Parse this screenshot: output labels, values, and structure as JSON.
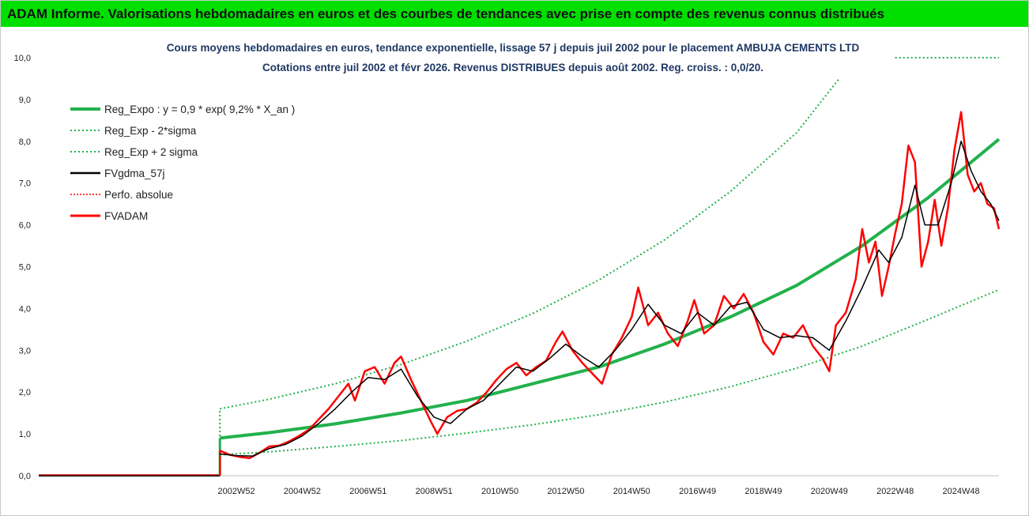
{
  "banner": {
    "title": "ADAM Informe. Valorisations hebdomadaires en euros et des courbes de tendances avec prise en compte des revenus connus distribués"
  },
  "chart_data": {
    "type": "line",
    "title_line1": "Cours moyens hebdomadaires en euros, tendance exponentielle, lissage 57 j depuis juil 2002 pour le placement AMBUJA CEMENTS LTD",
    "title_line2": "Cotations entre juil 2002 et févr 2026.  Revenus DISTRIBUES depuis août 2002. Reg. croiss. : 0,0/20.",
    "ylim": [
      0,
      10
    ],
    "yticks": [
      "0,0",
      "1,0",
      "2,0",
      "3,0",
      "4,0",
      "5,0",
      "6,0",
      "7,0",
      "8,0",
      "9,0",
      "10,0"
    ],
    "xlim": [
      1997.0,
      2026.15
    ],
    "xticks": [
      {
        "label": "2002W52",
        "x": 2003.0
      },
      {
        "label": "2004W52",
        "x": 2005.0
      },
      {
        "label": "2006W51",
        "x": 2007.0
      },
      {
        "label": "2008W51",
        "x": 2009.0
      },
      {
        "label": "2010W50",
        "x": 2011.0
      },
      {
        "label": "2012W50",
        "x": 2013.0
      },
      {
        "label": "2014W50",
        "x": 2015.0
      },
      {
        "label": "2016W49",
        "x": 2017.0
      },
      {
        "label": "2018W49",
        "x": 2019.0
      },
      {
        "label": "2020W49",
        "x": 2021.0
      },
      {
        "label": "2022W48",
        "x": 2023.0
      },
      {
        "label": "2024W48",
        "x": 2025.0
      }
    ],
    "grid": false,
    "legend_position": "top-left",
    "colors": {
      "reg_expo": "#22b14c",
      "sigma": "#22b14c",
      "fvgdma": "#000000",
      "perfo": "#ff0000",
      "fvadam": "#ff0000",
      "banner": "#00e000",
      "title": "#1f3864"
    },
    "start_x": 2002.5,
    "legend": [
      {
        "key": "reg_expo",
        "name": "Reg_Expo : y = 0,9 * exp( 9,2% *  X_an )"
      },
      {
        "key": "minus",
        "name": "Reg_Exp - 2*sigma"
      },
      {
        "key": "plus",
        "name": "Reg_Exp + 2 sigma"
      },
      {
        "key": "fvgdma",
        "name": "FVgdma_57j"
      },
      {
        "key": "perfo",
        "name": "Perfo. absolue"
      },
      {
        "key": "fvadam",
        "name": "FVADAM"
      }
    ],
    "series": [
      {
        "key": "reg_expo",
        "points": [
          [
            2002.5,
            0.9
          ],
          [
            2004,
            1.03
          ],
          [
            2006,
            1.24
          ],
          [
            2008,
            1.5
          ],
          [
            2010,
            1.8
          ],
          [
            2012,
            2.2
          ],
          [
            2014,
            2.6
          ],
          [
            2016,
            3.15
          ],
          [
            2018,
            3.8
          ],
          [
            2020,
            4.55
          ],
          [
            2022,
            5.5
          ],
          [
            2024,
            6.65
          ],
          [
            2026.15,
            8.05
          ]
        ]
      },
      {
        "key": "minus",
        "points": [
          [
            2002.5,
            0.5
          ],
          [
            2004,
            0.57
          ],
          [
            2006,
            0.7
          ],
          [
            2008,
            0.84
          ],
          [
            2010,
            1.02
          ],
          [
            2012,
            1.22
          ],
          [
            2014,
            1.46
          ],
          [
            2016,
            1.76
          ],
          [
            2018,
            2.13
          ],
          [
            2020,
            2.57
          ],
          [
            2022,
            3.1
          ],
          [
            2024,
            3.74
          ],
          [
            2026.15,
            4.45
          ]
        ]
      },
      {
        "key": "plus",
        "points": [
          [
            2002.5,
            1.6
          ],
          [
            2004,
            1.83
          ],
          [
            2006,
            2.2
          ],
          [
            2008,
            2.66
          ],
          [
            2010,
            3.22
          ],
          [
            2012,
            3.88
          ],
          [
            2014,
            4.68
          ],
          [
            2016,
            5.64
          ],
          [
            2018,
            6.8
          ],
          [
            2020,
            8.2
          ],
          [
            2021.3,
            9.5
          ]
        ]
      },
      {
        "key": "plus_flat",
        "points": [
          [
            2023.0,
            10.0
          ],
          [
            2026.15,
            10.0
          ]
        ]
      },
      {
        "key": "fvgdma",
        "points": [
          [
            2002.5,
            0.52
          ],
          [
            2003.0,
            0.48
          ],
          [
            2003.5,
            0.47
          ],
          [
            2004.0,
            0.65
          ],
          [
            2004.5,
            0.75
          ],
          [
            2005.0,
            0.95
          ],
          [
            2005.5,
            1.25
          ],
          [
            2006.0,
            1.6
          ],
          [
            2006.5,
            2.0
          ],
          [
            2007.0,
            2.35
          ],
          [
            2007.5,
            2.3
          ],
          [
            2008.0,
            2.55
          ],
          [
            2008.5,
            1.9
          ],
          [
            2009.0,
            1.4
          ],
          [
            2009.5,
            1.25
          ],
          [
            2010.0,
            1.6
          ],
          [
            2010.5,
            1.8
          ],
          [
            2011.0,
            2.2
          ],
          [
            2011.5,
            2.6
          ],
          [
            2012.0,
            2.5
          ],
          [
            2012.5,
            2.8
          ],
          [
            2013.0,
            3.15
          ],
          [
            2013.5,
            2.85
          ],
          [
            2014.0,
            2.6
          ],
          [
            2014.5,
            3.0
          ],
          [
            2015.0,
            3.5
          ],
          [
            2015.5,
            4.1
          ],
          [
            2016.0,
            3.6
          ],
          [
            2016.5,
            3.4
          ],
          [
            2017.0,
            3.9
          ],
          [
            2017.5,
            3.6
          ],
          [
            2018.0,
            4.05
          ],
          [
            2018.5,
            4.15
          ],
          [
            2019.0,
            3.5
          ],
          [
            2019.5,
            3.3
          ],
          [
            2020.0,
            3.35
          ],
          [
            2020.5,
            3.3
          ],
          [
            2021.0,
            3.0
          ],
          [
            2021.5,
            3.7
          ],
          [
            2022.0,
            4.5
          ],
          [
            2022.5,
            5.4
          ],
          [
            2022.8,
            5.1
          ],
          [
            2023.2,
            5.7
          ],
          [
            2023.6,
            6.95
          ],
          [
            2023.9,
            6.0
          ],
          [
            2024.3,
            6.0
          ],
          [
            2024.7,
            7.0
          ],
          [
            2025.0,
            8.0
          ],
          [
            2025.3,
            7.3
          ],
          [
            2025.6,
            6.8
          ],
          [
            2025.9,
            6.5
          ],
          [
            2026.15,
            6.1
          ]
        ]
      },
      {
        "key": "fvadam",
        "points": [
          [
            2002.5,
            0.6
          ],
          [
            2002.8,
            0.5
          ],
          [
            2003.1,
            0.45
          ],
          [
            2003.4,
            0.42
          ],
          [
            2003.7,
            0.55
          ],
          [
            2004.0,
            0.7
          ],
          [
            2004.3,
            0.72
          ],
          [
            2004.6,
            0.82
          ],
          [
            2004.9,
            0.95
          ],
          [
            2005.2,
            1.1
          ],
          [
            2005.5,
            1.35
          ],
          [
            2005.8,
            1.6
          ],
          [
            2006.1,
            1.9
          ],
          [
            2006.4,
            2.2
          ],
          [
            2006.6,
            1.8
          ],
          [
            2006.9,
            2.5
          ],
          [
            2007.2,
            2.6
          ],
          [
            2007.5,
            2.2
          ],
          [
            2007.8,
            2.7
          ],
          [
            2008.0,
            2.85
          ],
          [
            2008.3,
            2.3
          ],
          [
            2008.6,
            1.8
          ],
          [
            2008.9,
            1.3
          ],
          [
            2009.1,
            1.0
          ],
          [
            2009.4,
            1.4
          ],
          [
            2009.7,
            1.55
          ],
          [
            2010.0,
            1.6
          ],
          [
            2010.3,
            1.75
          ],
          [
            2010.6,
            2.0
          ],
          [
            2010.9,
            2.3
          ],
          [
            2011.2,
            2.55
          ],
          [
            2011.5,
            2.7
          ],
          [
            2011.8,
            2.4
          ],
          [
            2012.1,
            2.6
          ],
          [
            2012.4,
            2.75
          ],
          [
            2012.7,
            3.2
          ],
          [
            2012.9,
            3.45
          ],
          [
            2013.2,
            3.0
          ],
          [
            2013.5,
            2.7
          ],
          [
            2013.8,
            2.45
          ],
          [
            2014.1,
            2.2
          ],
          [
            2014.4,
            2.9
          ],
          [
            2014.7,
            3.3
          ],
          [
            2015.0,
            3.8
          ],
          [
            2015.2,
            4.5
          ],
          [
            2015.5,
            3.6
          ],
          [
            2015.8,
            3.9
          ],
          [
            2016.1,
            3.4
          ],
          [
            2016.4,
            3.1
          ],
          [
            2016.7,
            3.7
          ],
          [
            2016.9,
            4.2
          ],
          [
            2017.2,
            3.4
          ],
          [
            2017.5,
            3.6
          ],
          [
            2017.8,
            4.3
          ],
          [
            2018.1,
            4.0
          ],
          [
            2018.4,
            4.35
          ],
          [
            2018.7,
            3.9
          ],
          [
            2019.0,
            3.2
          ],
          [
            2019.3,
            2.9
          ],
          [
            2019.6,
            3.4
          ],
          [
            2019.9,
            3.3
          ],
          [
            2020.2,
            3.6
          ],
          [
            2020.5,
            3.1
          ],
          [
            2020.8,
            2.8
          ],
          [
            2021.0,
            2.5
          ],
          [
            2021.2,
            3.6
          ],
          [
            2021.5,
            3.9
          ],
          [
            2021.8,
            4.7
          ],
          [
            2022.0,
            5.9
          ],
          [
            2022.2,
            5.1
          ],
          [
            2022.4,
            5.6
          ],
          [
            2022.6,
            4.3
          ],
          [
            2022.8,
            5.0
          ],
          [
            2023.0,
            5.8
          ],
          [
            2023.2,
            6.5
          ],
          [
            2023.4,
            7.9
          ],
          [
            2023.6,
            7.5
          ],
          [
            2023.8,
            5.0
          ],
          [
            2024.0,
            5.6
          ],
          [
            2024.2,
            6.6
          ],
          [
            2024.4,
            5.5
          ],
          [
            2024.6,
            6.4
          ],
          [
            2024.8,
            7.8
          ],
          [
            2025.0,
            8.7
          ],
          [
            2025.2,
            7.2
          ],
          [
            2025.4,
            6.8
          ],
          [
            2025.6,
            7.0
          ],
          [
            2025.8,
            6.5
          ],
          [
            2026.0,
            6.4
          ],
          [
            2026.15,
            5.9
          ]
        ]
      }
    ]
  }
}
